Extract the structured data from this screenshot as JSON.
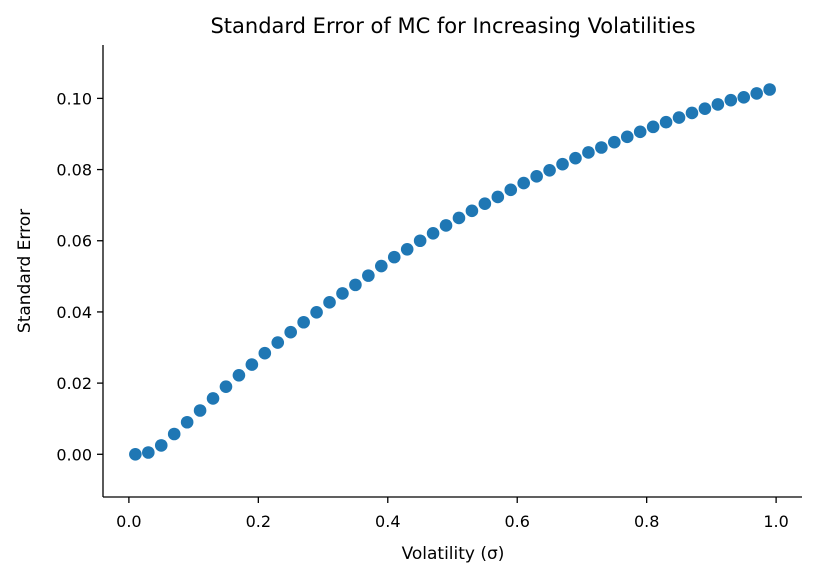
{
  "chart_data": {
    "type": "scatter",
    "title": "Standard Error of MC for Increasing Volatilities",
    "xlabel": "Volatility (σ)",
    "ylabel": "Standard Error",
    "xlim": [
      -0.04,
      1.04
    ],
    "ylim": [
      -0.012,
      0.115
    ],
    "xticks": [
      "0.0",
      "0.2",
      "0.4",
      "0.6",
      "0.8",
      "1.0"
    ],
    "yticks": [
      "0.00",
      "0.02",
      "0.04",
      "0.06",
      "0.08",
      "0.10"
    ],
    "grid": false,
    "color": "#1f77b4",
    "x": [
      0.01,
      0.03,
      0.05,
      0.07,
      0.09,
      0.11,
      0.13,
      0.15,
      0.17,
      0.19,
      0.21,
      0.23,
      0.25,
      0.27,
      0.29,
      0.31,
      0.33,
      0.35,
      0.37,
      0.39,
      0.41,
      0.43,
      0.45,
      0.47,
      0.49,
      0.51,
      0.53,
      0.55,
      0.57,
      0.59,
      0.61,
      0.63,
      0.65,
      0.67,
      0.69,
      0.71,
      0.73,
      0.75,
      0.77,
      0.79,
      0.81,
      0.83,
      0.85,
      0.87,
      0.89,
      0.91,
      0.93,
      0.95,
      0.97,
      0.99
    ],
    "y": [
      0.0,
      0.0005,
      0.0025,
      0.0057,
      0.009,
      0.0123,
      0.0157,
      0.019,
      0.0222,
      0.0252,
      0.0284,
      0.0314,
      0.0343,
      0.0371,
      0.0399,
      0.0427,
      0.0452,
      0.0476,
      0.0502,
      0.0529,
      0.0554,
      0.0576,
      0.06,
      0.0621,
      0.0643,
      0.0664,
      0.0684,
      0.0704,
      0.0723,
      0.0743,
      0.0762,
      0.0781,
      0.0798,
      0.0815,
      0.0832,
      0.0848,
      0.0862,
      0.0877,
      0.0892,
      0.0906,
      0.092,
      0.0933,
      0.0946,
      0.0959,
      0.0971,
      0.0983,
      0.0995,
      0.1003,
      0.1014,
      0.1025
    ]
  }
}
